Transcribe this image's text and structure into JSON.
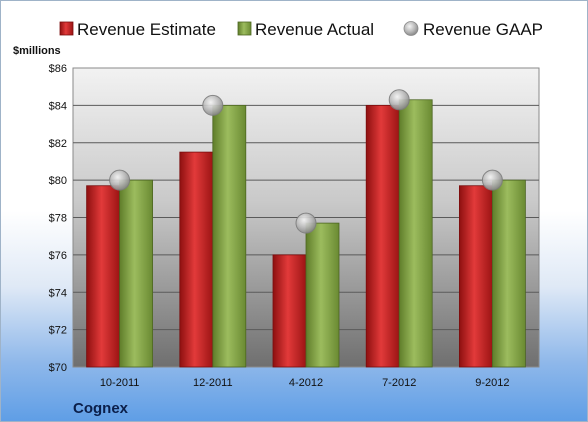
{
  "chart_data": {
    "type": "bar",
    "title": "",
    "company": "Cognex",
    "ylabel": "$millions",
    "xlabel": "",
    "ylim": [
      70,
      86
    ],
    "yticks": [
      70,
      72,
      74,
      76,
      78,
      80,
      82,
      84,
      86
    ],
    "ytick_labels": [
      "$70",
      "$72",
      "$74",
      "$76",
      "$78",
      "$80",
      "$82",
      "$84",
      "$86"
    ],
    "categories": [
      "10-2011",
      "12-2011",
      "4-2012",
      "7-2012",
      "9-2012"
    ],
    "series": [
      {
        "name": "Revenue Estimate",
        "kind": "bar",
        "color": "#cc2a2a",
        "values": [
          79.7,
          81.5,
          76.0,
          84.0,
          79.7
        ]
      },
      {
        "name": "Revenue Actual",
        "kind": "bar",
        "color": "#8cab4e",
        "values": [
          80.0,
          84.0,
          77.7,
          84.3,
          80.0
        ]
      },
      {
        "name": "Revenue GAAP",
        "kind": "marker",
        "color": "#b0b0b0",
        "values": [
          80.0,
          84.0,
          77.7,
          84.3,
          80.0
        ]
      }
    ],
    "grid": true,
    "legend_position": "top"
  }
}
